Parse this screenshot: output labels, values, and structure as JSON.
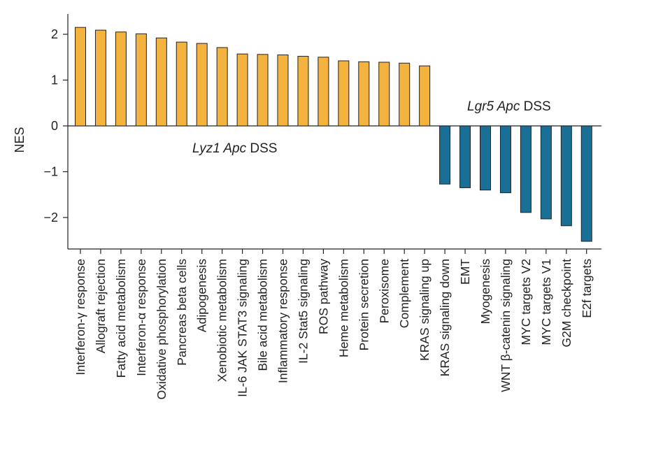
{
  "chart_data": {
    "type": "bar",
    "ylabel": "NES",
    "xlabel": "",
    "ylim": [
      -2.6,
      2.4
    ],
    "yticks": [
      2,
      1,
      0,
      -1,
      -2
    ],
    "ytick_labels": [
      "2",
      "1",
      "0",
      "−1",
      "−2"
    ],
    "colors": {
      "positive": "#f4b23e",
      "negative": "#1a6f96",
      "edge": "#222222"
    },
    "categories": [
      "Interferon-γ response",
      "Allograft rejection",
      "Fatty acid metabolism",
      "Interferon-α response",
      "Oxidative phosphorylation",
      "Pancreas beta cells",
      "Adipogenesis",
      "Xenobiotic metabolism",
      "IL-6 JAK STAT3 signaling",
      "Bile acid metabolism",
      "Inflammatory response",
      "IL-2 Stat5 signaling",
      "ROS pathway",
      "Heme metabolism",
      "Protein secretion",
      "Peroxisome",
      "Complement",
      "KRAS signaling up",
      "KRAS signaling down",
      "EMT",
      "Myogenesis",
      "WNT β-catenin signaling",
      "MYC targets V2",
      "MYC targets V1",
      "G2M checkpoint",
      "E2f targets"
    ],
    "values": [
      2.15,
      2.09,
      2.05,
      2.01,
      1.92,
      1.83,
      1.8,
      1.71,
      1.57,
      1.56,
      1.55,
      1.52,
      1.5,
      1.42,
      1.4,
      1.39,
      1.37,
      1.31,
      -1.27,
      -1.35,
      -1.4,
      -1.46,
      -1.89,
      -2.03,
      -2.18,
      -2.52
    ],
    "groups": [
      {
        "italic": "Lyz1 Apc",
        "rest": " DSS",
        "series": "positive"
      },
      {
        "italic": "Lgr5 Apc",
        "rest": " DSS",
        "series": "negative"
      }
    ]
  }
}
